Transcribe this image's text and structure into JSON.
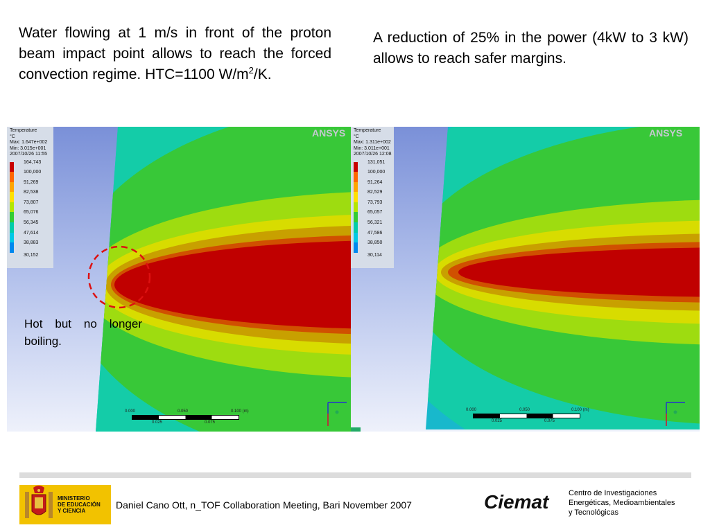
{
  "text": {
    "left_paragraph": [
      "Water flowing at 1 m/s in front of the proton beam impact point allows to reach the forced convection regime. HTC=1100 W/m",
      "2",
      "/K."
    ],
    "right_paragraph": "A reduction of 25% in the power (4kW to 3 kW) allows to reach safer margins.",
    "annotation": "Hot but no longer boiling."
  },
  "plots": [
    {
      "legend": {
        "header": [
          "Temperature",
          "°C",
          "Max: 1.647e+002",
          "Min: 3.015e+001",
          "2007/10/26 11:55"
        ],
        "levels": [
          "164,743",
          "100,000",
          "91,269",
          "82,538",
          "73,807",
          "65,076",
          "56,345",
          "47,614",
          "38,883",
          "30,152"
        ]
      },
      "watermark": "ANSYS",
      "scale": {
        "top": [
          "0.000",
          "0.050",
          "0.100 (m)"
        ],
        "bottom": [
          "0.025",
          "0.075"
        ]
      }
    },
    {
      "legend": {
        "header": [
          "Temperature",
          "°C",
          "Max: 1.311e+002",
          "Min: 3.011e+001",
          "2007/10/26 12:08"
        ],
        "levels": [
          "131,051",
          "100,000",
          "91,264",
          "82,529",
          "73,793",
          "65,057",
          "56,321",
          "47,586",
          "38,850",
          "30,114"
        ]
      },
      "watermark": "ANSYS",
      "scale": {
        "top": [
          "0.000",
          "0.050",
          "0.100 (m)"
        ],
        "bottom": [
          "0.025",
          "0.075"
        ]
      }
    }
  ],
  "legend_colors": [
    "#c80000",
    "#ff6600",
    "#ffa500",
    "#ffe000",
    "#b4e600",
    "#33cc33",
    "#00ccaa",
    "#00c8e6",
    "#0088ee",
    "#1010cc"
  ],
  "contour_colors": {
    "background": "#a8b8e8",
    "c1": "#18b8cc",
    "c2": "#14cca8",
    "c3": "#38c838",
    "c4": "#9edc10",
    "c5": "#d8dc00",
    "c6": "#c8a000",
    "c7": "#d05000",
    "hot": "#c00000",
    "marker": "#dd1111"
  },
  "footer": {
    "ministry": [
      "MINISTERIO",
      "DE EDUCACIÓN",
      "Y CIENCIA"
    ],
    "citation": "Daniel Cano Ott, n_TOF Collaboration Meeting, Bari November 2007",
    "brand": "Ciemat",
    "institute": [
      "Centro de Investigaciones",
      "Energéticas, Medioambientales",
      "y  Tecnológicas"
    ]
  }
}
